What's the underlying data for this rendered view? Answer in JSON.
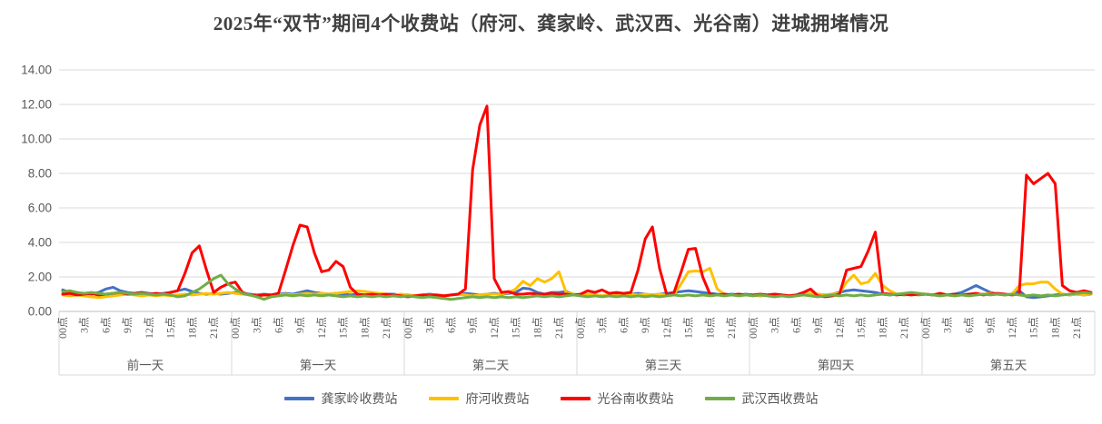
{
  "chart_data": {
    "type": "line",
    "title": "2025年“双节”期间4个收费站（府河、龚家岭、武汉西、光谷南）进城拥堵情况",
    "days": [
      "前一天",
      "第一天",
      "第二天",
      "第三天",
      "第四天",
      "第五天"
    ],
    "hour_ticks": [
      "00点",
      "3点",
      "6点",
      "9点",
      "12点",
      "15点",
      "18点",
      "21点"
    ],
    "hours_per_day": 24,
    "tick_interval_hours": 3,
    "ylim": [
      0,
      14
    ],
    "ytick_step": 2,
    "ytick_decimals": 2,
    "grid": true,
    "legend_position": "bottom",
    "colors": {
      "grid": "#d9d9d9",
      "axis": "#bfbfbf",
      "tick_text": "#595959",
      "title_text": "#404040"
    },
    "series": [
      {
        "name": "龚家岭收费站",
        "color": "#4472C4",
        "values": [
          1.25,
          1.1,
          1.0,
          1.05,
          1.0,
          1.1,
          1.3,
          1.4,
          1.2,
          1.1,
          1.05,
          1.1,
          1.05,
          1.0,
          1.05,
          1.1,
          1.2,
          1.3,
          1.15,
          1.05,
          1.0,
          1.05,
          1.0,
          1.05,
          1.1,
          1.05,
          1.0,
          0.95,
          1.0,
          0.95,
          1.0,
          1.05,
          1.0,
          1.1,
          1.2,
          1.1,
          1.05,
          1.0,
          1.05,
          1.0,
          0.95,
          1.0,
          0.95,
          1.0,
          0.95,
          1.0,
          1.0,
          0.95,
          0.95,
          0.9,
          0.95,
          1.0,
          0.95,
          0.9,
          0.95,
          1.0,
          1.05,
          1.0,
          0.95,
          1.0,
          1.05,
          1.0,
          1.05,
          1.1,
          1.35,
          1.3,
          1.1,
          1.0,
          1.1,
          1.1,
          1.15,
          1.0,
          0.95,
          1.0,
          0.95,
          0.9,
          0.95,
          1.0,
          0.95,
          1.0,
          1.05,
          1.0,
          0.95,
          1.0,
          1.05,
          1.1,
          1.15,
          1.2,
          1.15,
          1.1,
          1.05,
          1.0,
          0.95,
          1.0,
          0.95,
          1.0,
          0.95,
          0.9,
          0.95,
          1.0,
          0.95,
          0.9,
          0.95,
          1.0,
          1.05,
          1.0,
          0.95,
          1.0,
          1.1,
          1.2,
          1.25,
          1.2,
          1.15,
          1.1,
          1.0,
          0.95,
          1.0,
          0.95,
          1.0,
          0.95,
          1.0,
          0.95,
          1.0,
          0.95,
          1.0,
          1.1,
          1.3,
          1.5,
          1.3,
          1.1,
          1.0,
          0.95,
          1.0,
          1.2,
          0.85,
          0.8,
          0.85,
          0.9,
          0.95,
          1.0,
          0.95,
          1.0,
          0.95,
          1.0
        ]
      },
      {
        "name": "府河收费站",
        "color": "#FFC000",
        "values": [
          0.95,
          0.9,
          0.95,
          0.9,
          0.85,
          0.8,
          0.85,
          0.9,
          0.95,
          1.0,
          0.95,
          0.9,
          0.95,
          0.9,
          0.95,
          0.9,
          0.95,
          1.0,
          0.95,
          1.0,
          1.05,
          1.0,
          1.05,
          1.1,
          1.05,
          1.0,
          0.95,
          0.9,
          0.95,
          0.9,
          0.95,
          1.0,
          0.95,
          1.0,
          1.05,
          1.0,
          1.05,
          1.0,
          1.05,
          1.1,
          1.15,
          1.2,
          1.15,
          1.1,
          1.05,
          1.0,
          0.95,
          1.0,
          0.95,
          0.9,
          0.95,
          0.9,
          0.95,
          0.9,
          0.95,
          1.0,
          0.95,
          0.9,
          0.95,
          1.0,
          1.0,
          1.0,
          1.1,
          1.3,
          1.75,
          1.5,
          1.9,
          1.7,
          1.9,
          2.3,
          1.1,
          1.0,
          0.95,
          1.0,
          0.95,
          0.9,
          0.95,
          0.9,
          0.95,
          1.0,
          0.95,
          1.0,
          0.95,
          1.0,
          0.95,
          1.0,
          1.6,
          2.3,
          2.35,
          2.3,
          2.5,
          1.3,
          1.0,
          0.95,
          1.0,
          0.95,
          0.95,
          0.9,
          0.95,
          1.0,
          0.95,
          0.9,
          0.95,
          1.0,
          1.05,
          1.0,
          0.95,
          1.0,
          1.05,
          1.7,
          2.1,
          1.6,
          1.7,
          2.2,
          1.5,
          1.2,
          1.0,
          0.95,
          1.0,
          0.95,
          1.0,
          0.95,
          1.0,
          0.95,
          0.9,
          0.95,
          1.0,
          0.95,
          1.0,
          1.05,
          1.0,
          0.95,
          1.0,
          1.5,
          1.6,
          1.6,
          1.7,
          1.7,
          1.3,
          1.0,
          0.95,
          1.0,
          0.95,
          1.0
        ]
      },
      {
        "name": "光谷南收费站",
        "color": "#FF0000",
        "values": [
          1.0,
          1.05,
          0.95,
          1.0,
          1.05,
          0.95,
          1.0,
          1.05,
          1.1,
          1.0,
          1.05,
          1.1,
          1.0,
          1.05,
          1.0,
          1.1,
          1.2,
          2.2,
          3.4,
          3.8,
          2.4,
          1.1,
          1.4,
          1.6,
          1.7,
          1.1,
          0.95,
          0.9,
          0.95,
          0.95,
          1.05,
          2.4,
          3.8,
          5.0,
          4.9,
          3.4,
          2.3,
          2.4,
          2.9,
          2.6,
          1.4,
          1.0,
          0.95,
          1.0,
          0.95,
          1.0,
          0.95,
          0.9,
          0.85,
          0.9,
          0.95,
          0.9,
          0.95,
          0.9,
          0.95,
          1.0,
          1.3,
          8.2,
          10.8,
          11.9,
          1.9,
          1.1,
          1.15,
          1.0,
          1.0,
          1.05,
          1.0,
          1.0,
          1.05,
          1.0,
          1.0,
          0.95,
          1.0,
          1.2,
          1.1,
          1.25,
          1.05,
          1.1,
          1.05,
          1.1,
          2.4,
          4.2,
          4.9,
          2.5,
          0.95,
          1.1,
          2.3,
          3.6,
          3.65,
          2.0,
          1.0,
          0.95,
          1.0,
          0.95,
          1.0,
          0.95,
          0.95,
          1.0,
          0.95,
          1.0,
          0.95,
          0.9,
          0.95,
          1.1,
          1.3,
          0.9,
          0.85,
          0.9,
          1.0,
          2.4,
          2.5,
          2.6,
          3.5,
          4.6,
          1.05,
          1.0,
          0.95,
          1.0,
          0.95,
          1.0,
          1.0,
          0.95,
          1.05,
          0.95,
          1.0,
          0.95,
          1.0,
          1.05,
          0.95,
          1.0,
          1.05,
          1.0,
          0.95,
          1.0,
          7.9,
          7.4,
          7.7,
          8.0,
          7.4,
          1.5,
          1.2,
          1.1,
          1.2,
          1.1
        ]
      },
      {
        "name": "武汉西收费站",
        "color": "#70AD47",
        "values": [
          1.15,
          1.2,
          1.1,
          1.05,
          1.1,
          1.05,
          1.0,
          1.05,
          1.1,
          1.05,
          1.0,
          1.05,
          1.0,
          0.95,
          1.0,
          0.95,
          0.85,
          0.9,
          1.1,
          1.3,
          1.6,
          1.9,
          2.1,
          1.6,
          1.3,
          1.05,
          0.95,
          0.85,
          0.7,
          0.85,
          0.9,
          0.95,
          0.9,
          0.95,
          0.9,
          0.95,
          0.9,
          0.95,
          0.9,
          0.85,
          0.9,
          0.85,
          0.9,
          0.85,
          0.9,
          0.85,
          0.9,
          0.85,
          0.9,
          0.85,
          0.8,
          0.85,
          0.8,
          0.75,
          0.7,
          0.75,
          0.8,
          0.85,
          0.8,
          0.85,
          0.8,
          0.85,
          0.8,
          0.85,
          0.8,
          0.85,
          0.9,
          0.85,
          0.9,
          0.85,
          0.9,
          0.95,
          0.9,
          0.85,
          0.9,
          0.85,
          0.9,
          0.85,
          0.9,
          0.85,
          0.9,
          0.85,
          0.9,
          0.85,
          0.9,
          0.95,
          0.9,
          0.95,
          0.9,
          0.95,
          0.9,
          0.95,
          0.9,
          0.95,
          0.9,
          0.95,
          0.9,
          0.95,
          0.9,
          0.85,
          0.9,
          0.85,
          0.9,
          0.95,
          0.9,
          0.85,
          0.9,
          0.95,
          0.9,
          0.95,
          0.9,
          0.95,
          0.9,
          0.95,
          1.0,
          0.95,
          1.0,
          1.05,
          1.1,
          1.05,
          1.0,
          0.95,
          0.9,
          0.95,
          0.9,
          0.95,
          0.9,
          0.95,
          1.0,
          0.95,
          1.0,
          0.95,
          1.0,
          0.95,
          0.9,
          0.95,
          0.9,
          0.95,
          0.9,
          0.95,
          1.0,
          1.05,
          1.1,
          1.05
        ]
      }
    ]
  }
}
